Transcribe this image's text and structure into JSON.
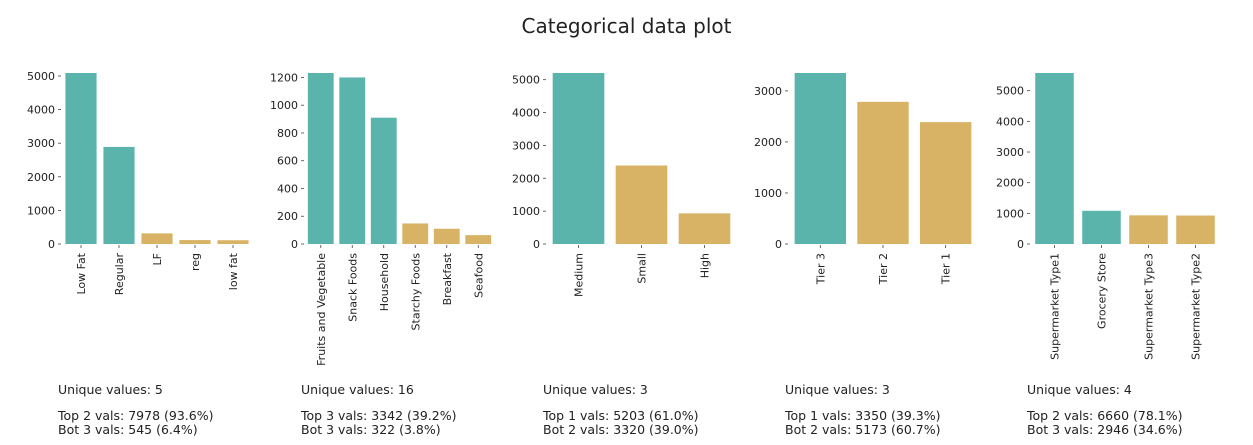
{
  "title": "Categorical data plot",
  "colors": {
    "top": "#5bb4ac",
    "bottom": "#d8b365"
  },
  "chart_data": [
    {
      "type": "bar",
      "categories": [
        "Low Fat",
        "Regular",
        "LF",
        "reg",
        "low fat"
      ],
      "values": [
        5089,
        2889,
        316,
        117,
        112
      ],
      "top_count": 2,
      "ylim": [
        0,
        5089
      ],
      "yticks": [
        0,
        1000,
        2000,
        3000,
        4000,
        5000
      ],
      "grid": false,
      "stats": {
        "unique": "Unique values: 5",
        "top": "Top 2 vals: 7978 (93.6%)",
        "bot": "Bot 3 vals: 545 (6.4%)"
      }
    },
    {
      "type": "bar",
      "categories": [
        "Fruits and Vegetable",
        "Snack Foods",
        "Household",
        "Starchy Foods",
        "Breakfast",
        "Seafood"
      ],
      "values": [
        1232,
        1200,
        910,
        148,
        110,
        64
      ],
      "top_count": 3,
      "ylim": [
        0,
        1232
      ],
      "yticks": [
        0,
        200,
        400,
        600,
        800,
        1000,
        1200
      ],
      "grid": false,
      "stats": {
        "unique": "Unique values: 16",
        "top": "Top 3 vals: 3342 (39.2%)",
        "bot": "Bot 3 vals: 322 (3.8%)"
      }
    },
    {
      "type": "bar",
      "categories": [
        "Medium",
        "Small",
        "High"
      ],
      "values": [
        5203,
        2388,
        932
      ],
      "top_count": 1,
      "ylim": [
        0,
        5203
      ],
      "yticks": [
        0,
        1000,
        2000,
        3000,
        4000,
        5000
      ],
      "grid": false,
      "stats": {
        "unique": "Unique values: 3",
        "top": "Top 1 vals: 5203 (61.0%)",
        "bot": "Bot 2 vals: 3320 (39.0%)"
      }
    },
    {
      "type": "bar",
      "categories": [
        "Tier 3",
        "Tier 2",
        "Tier 1"
      ],
      "values": [
        3350,
        2785,
        2388
      ],
      "top_count": 1,
      "ylim": [
        0,
        3350
      ],
      "yticks": [
        0,
        1000,
        2000,
        3000
      ],
      "grid": false,
      "stats": {
        "unique": "Unique values: 3",
        "top": "Top 1 vals: 3350 (39.3%)",
        "bot": "Bot 2 vals: 5173 (60.7%)"
      }
    },
    {
      "type": "bar",
      "categories": [
        "Supermarket Type1",
        "Grocery Store",
        "Supermarket Type3",
        "Supermarket Type2"
      ],
      "values": [
        5577,
        1083,
        935,
        928
      ],
      "top_count": 2,
      "ylim": [
        0,
        5577
      ],
      "yticks": [
        0,
        1000,
        2000,
        3000,
        4000,
        5000
      ],
      "grid": false,
      "stats": {
        "unique": "Unique values: 4",
        "top": "Top 2 vals: 6660 (78.1%)",
        "bot": "Bot 3 vals: 2946 (34.6%)"
      }
    }
  ]
}
